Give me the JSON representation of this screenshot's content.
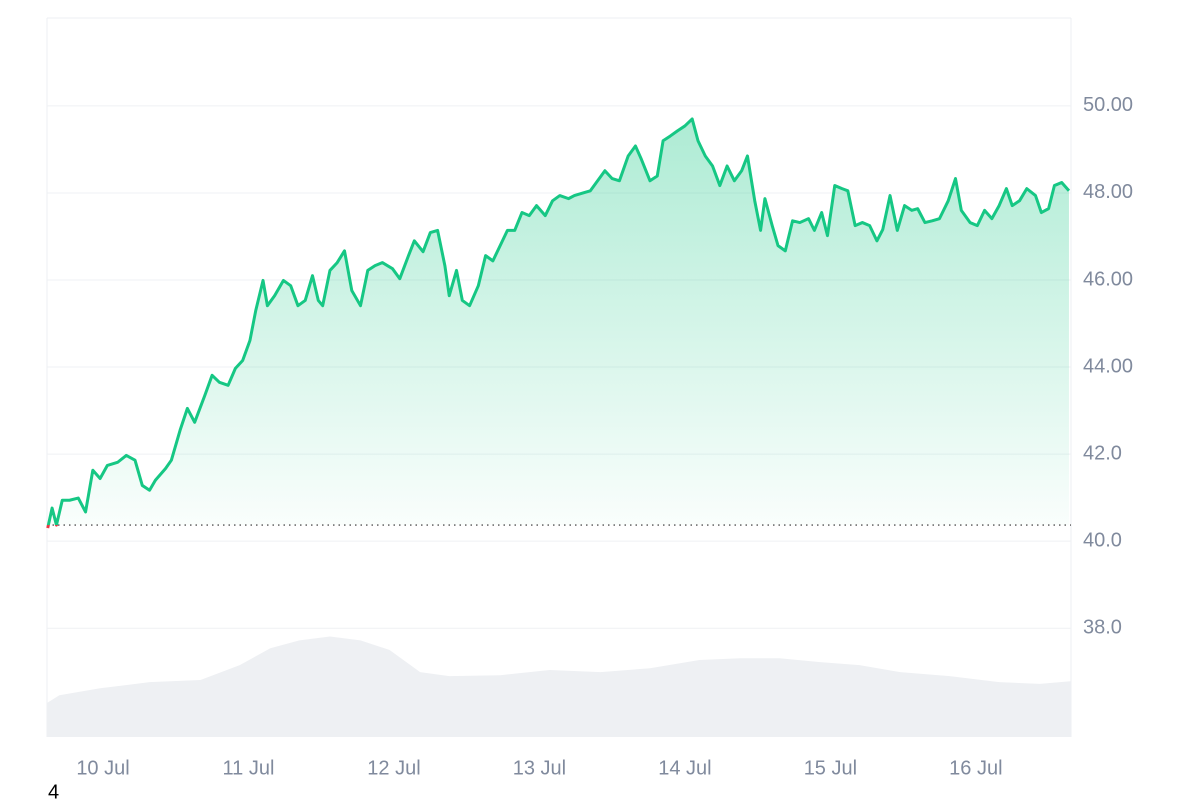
{
  "chart_data": {
    "type": "line",
    "x": [
      9.62,
      9.65,
      9.68,
      9.72,
      9.77,
      9.83,
      9.88,
      9.93,
      9.98,
      10.03,
      10.1,
      10.16,
      10.22,
      10.27,
      10.32,
      10.36,
      10.43,
      10.47,
      10.53,
      10.58,
      10.63,
      10.7,
      10.75,
      10.8,
      10.86,
      10.91,
      10.96,
      11.01,
      11.05,
      11.1,
      11.13,
      11.18,
      11.24,
      11.29,
      11.34,
      11.39,
      11.44,
      11.48,
      11.51,
      11.56,
      11.61,
      11.66,
      11.71,
      11.77,
      11.82,
      11.87,
      11.92,
      11.99,
      12.04,
      12.1,
      12.14,
      12.2,
      12.25,
      12.3,
      12.35,
      12.38,
      12.43,
      12.47,
      12.52,
      12.58,
      12.63,
      12.68,
      12.73,
      12.78,
      12.83,
      12.88,
      12.93,
      12.98,
      13.04,
      13.09,
      13.14,
      13.2,
      13.24,
      13.3,
      13.35,
      13.4,
      13.45,
      13.5,
      13.55,
      13.61,
      13.66,
      13.7,
      13.76,
      13.81,
      13.85,
      13.9,
      13.95,
      14.0,
      14.05,
      14.09,
      14.14,
      14.19,
      14.24,
      14.29,
      14.34,
      14.39,
      14.43,
      14.48,
      14.52,
      14.55,
      14.6,
      14.64,
      14.69,
      14.74,
      14.79,
      14.85,
      14.89,
      14.94,
      14.98,
      15.03,
      15.08,
      15.12,
      15.17,
      15.22,
      15.27,
      15.32,
      15.36,
      15.41,
      15.46,
      15.51,
      15.56,
      15.6,
      15.65,
      15.7,
      15.75,
      15.81,
      15.86,
      15.9,
      15.96,
      16.01,
      16.06,
      16.11,
      16.16,
      16.21,
      16.25,
      16.3,
      16.35,
      16.41,
      16.45,
      16.5,
      16.54,
      16.59,
      16.64
    ],
    "series": [
      {
        "color": "#16c784",
        "color_below": "#ea3943",
        "values": [
          40.3,
          40.76,
          40.37,
          40.94,
          40.94,
          40.99,
          40.67,
          41.63,
          41.44,
          41.74,
          41.81,
          41.97,
          41.86,
          41.28,
          41.17,
          41.4,
          41.67,
          41.86,
          42.55,
          43.05,
          42.73,
          43.35,
          43.81,
          43.65,
          43.58,
          43.97,
          44.15,
          44.61,
          45.3,
          45.99,
          45.41,
          45.64,
          45.99,
          45.87,
          45.41,
          45.53,
          46.1,
          45.53,
          45.41,
          46.22,
          46.4,
          46.67,
          45.76,
          45.41,
          46.22,
          46.33,
          46.4,
          46.26,
          46.03,
          46.56,
          46.9,
          46.65,
          47.09,
          47.14,
          46.33,
          45.64,
          46.22,
          45.53,
          45.41,
          45.87,
          46.56,
          46.44,
          46.79,
          47.14,
          47.14,
          47.55,
          47.48,
          47.71,
          47.48,
          47.82,
          47.94,
          47.87,
          47.94,
          48.0,
          48.05,
          48.28,
          48.51,
          48.33,
          48.28,
          48.85,
          49.08,
          48.78,
          48.28,
          48.39,
          49.2,
          49.31,
          49.43,
          49.54,
          49.7,
          49.2,
          48.85,
          48.62,
          48.17,
          48.62,
          48.28,
          48.51,
          48.85,
          47.82,
          47.14,
          47.87,
          47.25,
          46.79,
          46.67,
          47.36,
          47.32,
          47.41,
          47.14,
          47.55,
          47.02,
          48.17,
          48.1,
          48.05,
          47.25,
          47.32,
          47.25,
          46.9,
          47.16,
          47.94,
          47.14,
          47.71,
          47.6,
          47.64,
          47.32,
          47.36,
          47.41,
          47.82,
          48.33,
          47.6,
          47.32,
          47.25,
          47.6,
          47.41,
          47.71,
          48.1,
          47.71,
          47.82,
          48.1,
          47.94,
          47.55,
          47.64,
          48.17,
          48.24,
          48.05
        ]
      }
    ],
    "baseline": 40.37,
    "volume": {
      "color": "#eef0f3",
      "x": [
        9.615,
        9.7,
        9.98,
        10.32,
        10.67,
        10.94,
        11.15,
        11.35,
        11.56,
        11.77,
        11.97,
        12.18,
        12.38,
        12.73,
        13.07,
        13.42,
        13.76,
        14.1,
        14.38,
        14.65,
        14.93,
        15.2,
        15.48,
        15.82,
        16.16,
        16.44,
        16.65
      ],
      "values": [
        36.28,
        36.46,
        36.62,
        36.76,
        36.81,
        37.15,
        37.54,
        37.72,
        37.81,
        37.72,
        37.5,
        36.99,
        36.9,
        36.92,
        37.04,
        36.99,
        37.08,
        37.27,
        37.31,
        37.31,
        37.22,
        37.15,
        36.99,
        36.9,
        36.76,
        36.72,
        36.78
      ]
    },
    "xlim": [
      9.615,
      16.654
    ],
    "ylim": [
      35.5,
      52.02
    ],
    "xticks": [
      {
        "value": 10,
        "label": "10 Jul"
      },
      {
        "value": 11,
        "label": "11 Jul"
      },
      {
        "value": 12,
        "label": "12 Jul"
      },
      {
        "value": 13,
        "label": "13 Jul"
      },
      {
        "value": 14,
        "label": "14 Jul"
      },
      {
        "value": 15,
        "label": "15 Jul"
      },
      {
        "value": 16,
        "label": "16 Jul"
      }
    ],
    "yticks": [
      {
        "value": 50,
        "label": "50.00"
      },
      {
        "value": 48,
        "label": "48.00"
      },
      {
        "value": 46,
        "label": "46.00"
      },
      {
        "value": 44,
        "label": "44.00"
      },
      {
        "value": 42,
        "label": "42.0"
      },
      {
        "value": 40,
        "label": "40.0"
      },
      {
        "value": 38,
        "label": "38.0"
      }
    ],
    "grid": true,
    "annotation": "4"
  }
}
